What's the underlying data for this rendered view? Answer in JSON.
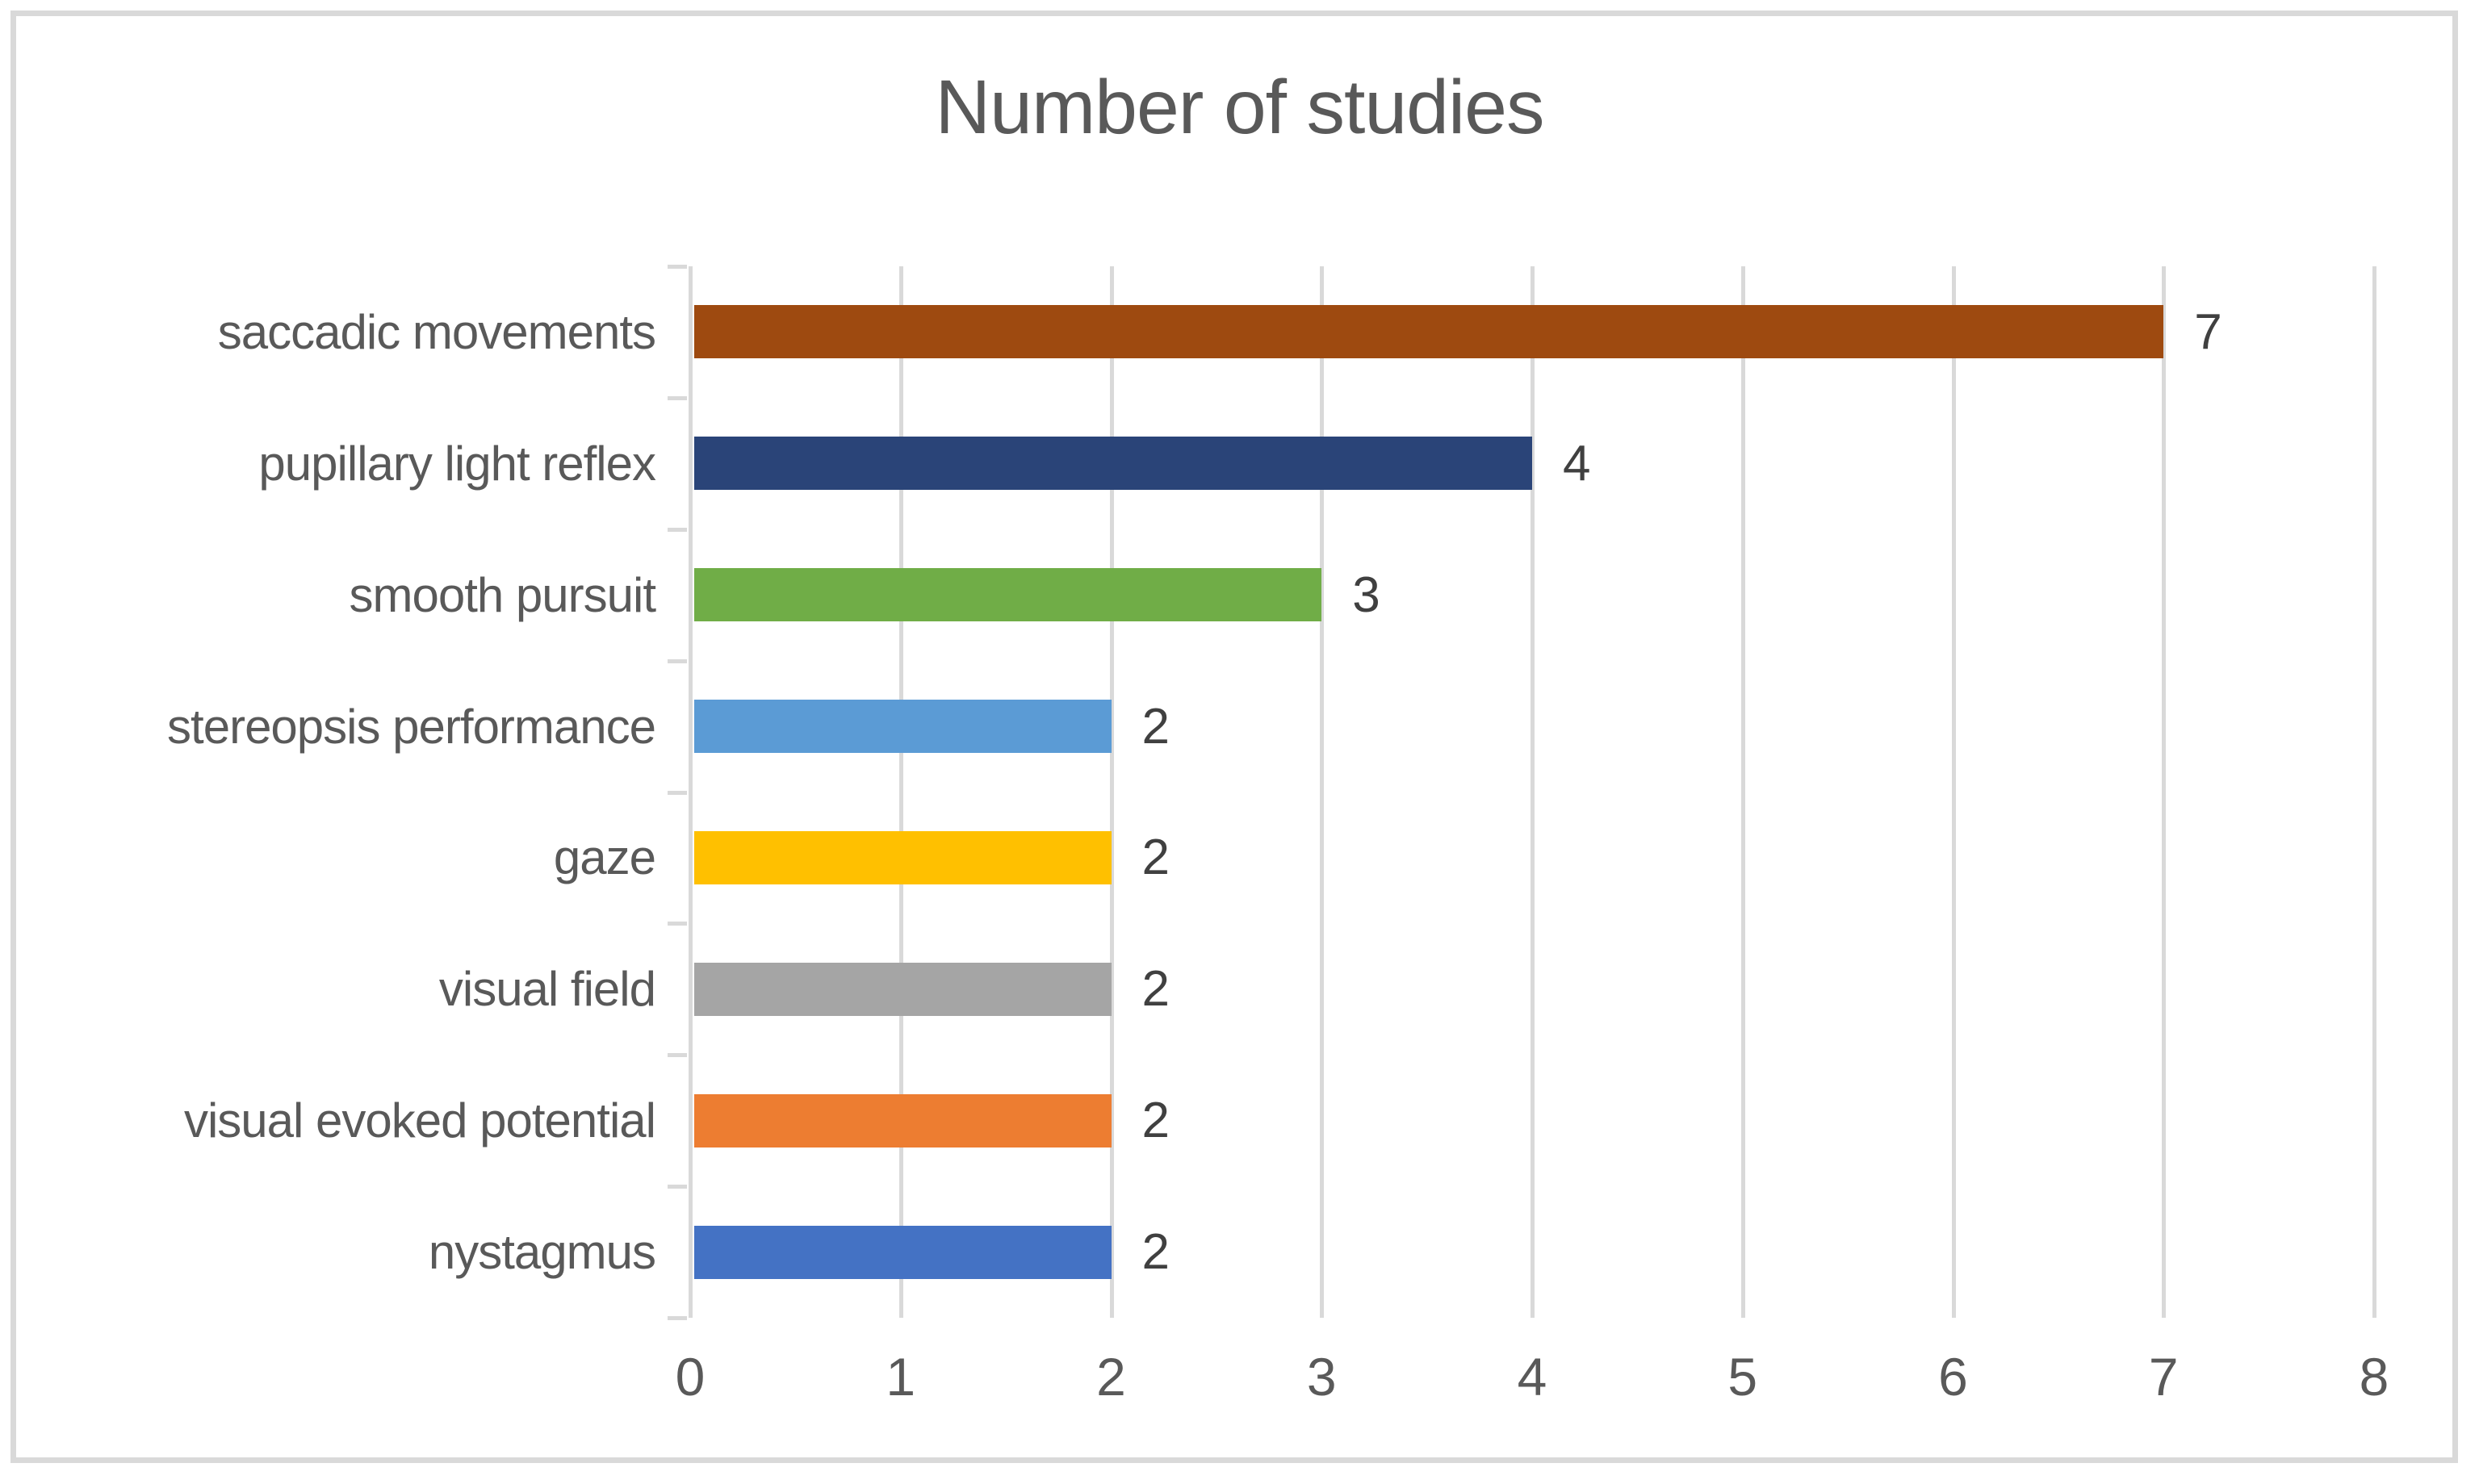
{
  "chart_data": {
    "type": "bar",
    "orientation": "horizontal",
    "title": "Number of studies",
    "categories": [
      "saccadic movements",
      "pupillary light reflex",
      "smooth pursuit",
      "stereopsis performance",
      "gaze",
      "visual field",
      "visual evoked potential",
      "nystagmus"
    ],
    "values": [
      7,
      4,
      3,
      2,
      2,
      2,
      2,
      2
    ],
    "bar_colors": [
      "#9E4A10",
      "#2A4478",
      "#70AD47",
      "#5B9BD5",
      "#FFC000",
      "#A5A5A5",
      "#ED7D31",
      "#4472C4"
    ],
    "x_ticks": [
      "0",
      "1",
      "2",
      "3",
      "4",
      "5",
      "6",
      "7",
      "8"
    ],
    "xlim": [
      0,
      8
    ],
    "xlabel": "",
    "ylabel": "",
    "data_labels_shown": true,
    "grid": "vertical-only",
    "legend": "none",
    "colors": {
      "title_text": "#595959",
      "axis_text": "#595959",
      "data_label_text": "#404040",
      "gridline": "#D9D9D9",
      "border": "#D9D9D9",
      "background": "#FFFFFF"
    }
  }
}
